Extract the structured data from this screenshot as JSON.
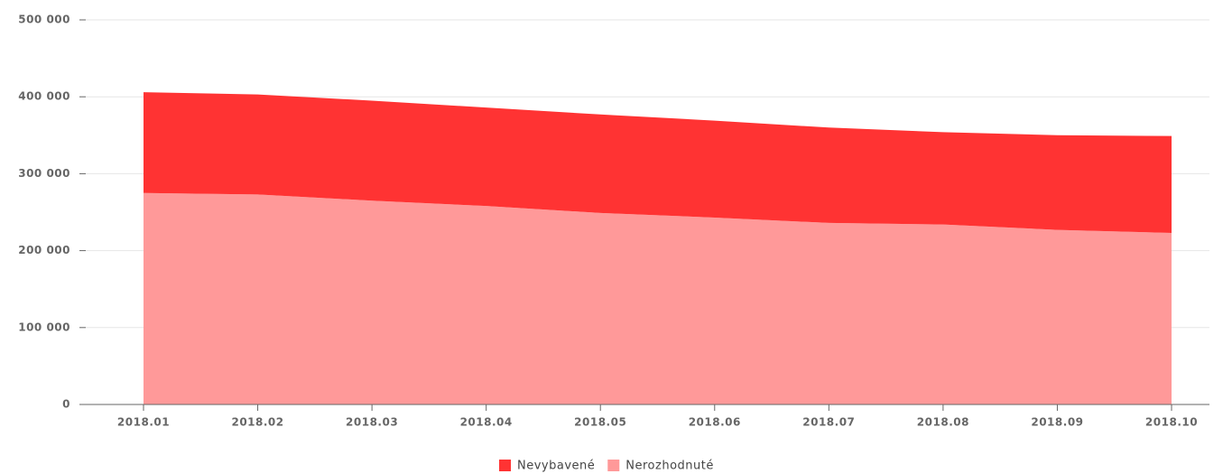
{
  "chart_data": {
    "type": "area",
    "stacked": true,
    "categories": [
      "2018.01",
      "2018.02",
      "2018.03",
      "2018.04",
      "2018.05",
      "2018.06",
      "2018.07",
      "2018.08",
      "2018.09",
      "2018.10"
    ],
    "series": [
      {
        "name": "Nevybavené",
        "color": "#ff3333",
        "values": [
          131000,
          130000,
          130000,
          128000,
          128000,
          126000,
          124000,
          120000,
          123000,
          126000
        ]
      },
      {
        "name": "Nerozhodnuté",
        "color": "#ff9999",
        "values": [
          275000,
          273000,
          265000,
          258000,
          249000,
          243000,
          236000,
          234000,
          227000,
          223000
        ]
      }
    ],
    "ylim": [
      0,
      500000
    ],
    "yticks": [
      0,
      {
        "value": 100000,
        "label": "100 000"
      },
      {
        "value": 200000,
        "label": "200 000"
      },
      {
        "value": 300000,
        "label": "300 000"
      },
      {
        "value": 400000,
        "label": "400 000"
      },
      {
        "value": 500000,
        "label": "500 000"
      }
    ],
    "grid": true,
    "legend": "bottom"
  }
}
